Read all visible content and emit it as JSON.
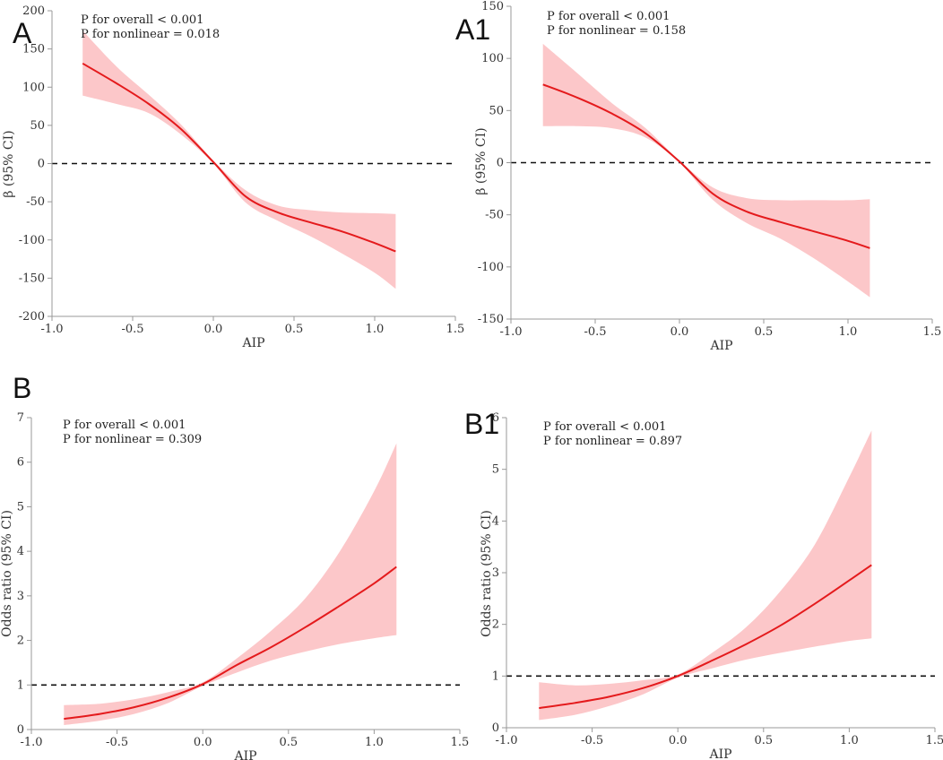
{
  "chart_data": [
    {
      "id": "A",
      "panel_label": "A",
      "type": "line",
      "xlabel": "AIP",
      "ylabel": "β (95% CI)",
      "xlim": [
        -1.0,
        1.5
      ],
      "ylim": [
        -200,
        200
      ],
      "xticks": [
        -1.0,
        -0.5,
        0.0,
        0.5,
        1.0,
        1.5
      ],
      "yticks": [
        -200,
        -150,
        -100,
        -50,
        0,
        50,
        100,
        150,
        200
      ],
      "xtick_labels": [
        "-1.0",
        "-0.5",
        "0.0",
        "0.5",
        "1.0",
        "1.5"
      ],
      "ytick_labels": [
        "-200",
        "-150",
        "-100",
        "-50",
        "0",
        "50",
        "100",
        "150",
        "200"
      ],
      "reference_line": 0,
      "annotations": [
        "P for overall < 0.001",
        "P for nonlinear = 0.018"
      ],
      "series": [
        {
          "name": "estimate",
          "x": [
            -0.81,
            -0.6,
            -0.4,
            -0.2,
            0.0,
            0.2,
            0.4,
            0.6,
            0.8,
            1.0,
            1.13
          ],
          "y": [
            131,
            105,
            78,
            45,
            2,
            -43,
            -64,
            -77,
            -89,
            -104,
            -115
          ]
        },
        {
          "name": "lower",
          "x": [
            -0.81,
            -0.6,
            -0.4,
            -0.2,
            0.0,
            0.2,
            0.4,
            0.6,
            0.8,
            1.0,
            1.13
          ],
          "y": [
            89,
            78,
            66,
            38,
            0,
            -51,
            -75,
            -95,
            -118,
            -143,
            -164
          ]
        },
        {
          "name": "upper",
          "x": [
            -0.81,
            -0.6,
            -0.4,
            -0.2,
            0.0,
            0.2,
            0.4,
            0.6,
            0.8,
            1.0,
            1.13
          ],
          "y": [
            174,
            127,
            90,
            51,
            4,
            -35,
            -55,
            -61,
            -64,
            -65,
            -66
          ]
        }
      ]
    },
    {
      "id": "A1",
      "panel_label": "A1",
      "type": "line",
      "xlabel": "AIP",
      "ylabel": "β (95% CI)",
      "xlim": [
        -1.0,
        1.5
      ],
      "ylim": [
        -150,
        150
      ],
      "xticks": [
        -1.0,
        -0.5,
        0.0,
        0.5,
        1.0,
        1.5
      ],
      "yticks": [
        -150,
        -100,
        -50,
        0,
        50,
        100,
        150
      ],
      "xtick_labels": [
        "-1.0",
        "-0.5",
        "0.0",
        "0.5",
        "1.0",
        "1.5"
      ],
      "ytick_labels": [
        "-150",
        "-100",
        "-50",
        "0",
        "50",
        "100",
        "150"
      ],
      "reference_line": 0,
      "annotations": [
        "P for overall < 0.001",
        "P for nonlinear = 0.158"
      ],
      "series": [
        {
          "name": "estimate",
          "x": [
            -0.81,
            -0.6,
            -0.4,
            -0.2,
            0.0,
            0.2,
            0.4,
            0.6,
            0.8,
            1.0,
            1.13
          ],
          "y": [
            75,
            62,
            47,
            28,
            1,
            -30,
            -47,
            -57,
            -66,
            -75,
            -82
          ]
        },
        {
          "name": "lower",
          "x": [
            -0.81,
            -0.6,
            -0.4,
            -0.2,
            0.0,
            0.2,
            0.4,
            0.6,
            0.8,
            1.0,
            1.13
          ],
          "y": [
            35,
            35,
            33,
            24,
            0,
            -36,
            -58,
            -73,
            -92,
            -114,
            -129
          ]
        },
        {
          "name": "upper",
          "x": [
            -0.81,
            -0.6,
            -0.4,
            -0.2,
            0.0,
            0.2,
            0.4,
            0.6,
            0.8,
            1.0,
            1.13
          ],
          "y": [
            114,
            85,
            57,
            33,
            2,
            -24,
            -34,
            -36,
            -36,
            -36,
            -35
          ]
        }
      ]
    },
    {
      "id": "B",
      "panel_label": "B",
      "type": "line",
      "xlabel": "AIP",
      "ylabel": "Odds ratio (95% CI)",
      "xlim": [
        -1.0,
        1.5
      ],
      "ylim": [
        0,
        7
      ],
      "xticks": [
        -1.0,
        -0.5,
        0.0,
        0.5,
        1.0,
        1.5
      ],
      "yticks": [
        0,
        1,
        2,
        3,
        4,
        5,
        6,
        7
      ],
      "xtick_labels": [
        "-1.0",
        "-0.5",
        "0.0",
        "0.5",
        "1.0",
        "1.5"
      ],
      "ytick_labels": [
        "0",
        "1",
        "2",
        "3",
        "4",
        "5",
        "6",
        "7"
      ],
      "reference_line": 1,
      "annotations": [
        "P for overall < 0.001",
        "P for nonlinear = 0.309"
      ],
      "series": [
        {
          "name": "estimate",
          "x": [
            -0.81,
            -0.6,
            -0.4,
            -0.2,
            0.0,
            0.2,
            0.4,
            0.6,
            0.8,
            1.0,
            1.13
          ],
          "y": [
            0.24,
            0.35,
            0.5,
            0.72,
            1.02,
            1.45,
            1.85,
            2.3,
            2.78,
            3.28,
            3.65
          ]
        },
        {
          "name": "lower",
          "x": [
            -0.81,
            -0.6,
            -0.4,
            -0.2,
            0.0,
            0.2,
            0.4,
            0.6,
            0.8,
            1.0,
            1.13
          ],
          "y": [
            0.1,
            0.2,
            0.35,
            0.6,
            0.98,
            1.28,
            1.55,
            1.75,
            1.92,
            2.05,
            2.12
          ]
        },
        {
          "name": "upper",
          "x": [
            -0.81,
            -0.6,
            -0.4,
            -0.2,
            0.0,
            0.2,
            0.4,
            0.6,
            0.8,
            1.0,
            1.13
          ],
          "y": [
            0.55,
            0.58,
            0.68,
            0.84,
            1.06,
            1.6,
            2.22,
            2.95,
            4.0,
            5.35,
            6.42
          ]
        }
      ]
    },
    {
      "id": "B1",
      "panel_label": "B1",
      "type": "line",
      "xlabel": "AIP",
      "ylabel": "Odds ratio (95% CI)",
      "xlim": [
        -1.0,
        1.5
      ],
      "ylim": [
        0,
        6
      ],
      "xticks": [
        -1.0,
        -0.5,
        0.0,
        0.5,
        1.0,
        1.5
      ],
      "yticks": [
        0,
        1,
        2,
        3,
        4,
        5,
        6
      ],
      "xtick_labels": [
        "-1.0",
        "-0.5",
        "0.0",
        "0.5",
        "1.0",
        "1.5"
      ],
      "ytick_labels": [
        "0",
        "1",
        "2",
        "3",
        "4",
        "5",
        "6"
      ],
      "reference_line": 1,
      "annotations": [
        "P for overall < 0.001",
        "P for nonlinear = 0.897"
      ],
      "series": [
        {
          "name": "estimate",
          "x": [
            -0.81,
            -0.6,
            -0.4,
            -0.2,
            0.0,
            0.2,
            0.4,
            0.6,
            0.8,
            1.0,
            1.13
          ],
          "y": [
            0.38,
            0.48,
            0.6,
            0.77,
            1.0,
            1.3,
            1.62,
            1.98,
            2.4,
            2.85,
            3.15
          ]
        },
        {
          "name": "lower",
          "x": [
            -0.81,
            -0.6,
            -0.4,
            -0.2,
            0.0,
            0.2,
            0.4,
            0.6,
            0.8,
            1.0,
            1.13
          ],
          "y": [
            0.15,
            0.25,
            0.42,
            0.65,
            0.97,
            1.15,
            1.32,
            1.45,
            1.57,
            1.68,
            1.73
          ]
        },
        {
          "name": "upper",
          "x": [
            -0.81,
            -0.6,
            -0.4,
            -0.2,
            0.0,
            0.2,
            0.4,
            0.6,
            0.8,
            1.0,
            1.13
          ],
          "y": [
            0.88,
            0.82,
            0.85,
            0.92,
            1.03,
            1.45,
            1.95,
            2.65,
            3.55,
            4.85,
            5.75
          ]
        }
      ]
    }
  ],
  "colors": {
    "line": "#e41a1c",
    "band": "#fcc7c9",
    "reference": "#111111",
    "axis": "#999999"
  }
}
